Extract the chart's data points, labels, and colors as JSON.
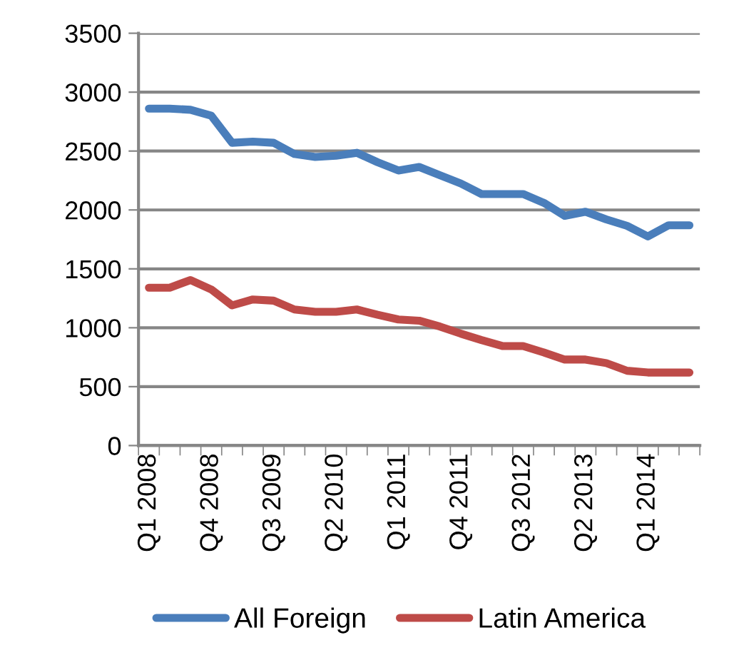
{
  "chart_data": {
    "type": "line",
    "categories": [
      "Q1 2008",
      null,
      null,
      "Q4 2008",
      null,
      null,
      "Q3 2009",
      null,
      null,
      "Q2 2010",
      null,
      null,
      "Q1 2011",
      null,
      null,
      "Q4 2011",
      null,
      null,
      "Q3 2012",
      null,
      null,
      "Q2 2013",
      null,
      null,
      "Q1 2014",
      null,
      null
    ],
    "series": [
      {
        "name": "All Foreign",
        "color": "#4a7ebb",
        "values": [
          2860,
          2860,
          2850,
          2800,
          2570,
          2580,
          2570,
          2475,
          2450,
          2460,
          2485,
          2405,
          2335,
          2365,
          2295,
          2225,
          2135,
          2135,
          2135,
          2060,
          1950,
          1985,
          1920,
          1865,
          1775,
          1870,
          1870
        ]
      },
      {
        "name": "Latin America",
        "color": "#be4b48",
        "values": [
          1340,
          1340,
          1405,
          1325,
          1190,
          1240,
          1230,
          1155,
          1135,
          1135,
          1155,
          1110,
          1070,
          1060,
          1010,
          950,
          895,
          845,
          845,
          790,
          730,
          730,
          700,
          635,
          620,
          620,
          620
        ]
      }
    ],
    "ylim": [
      0,
      3500
    ],
    "yticks": [
      0,
      500,
      1000,
      1500,
      2000,
      2500,
      3000,
      3500
    ],
    "grid": "y",
    "legend": "bottom",
    "marker": "none",
    "line_style": "solid"
  }
}
